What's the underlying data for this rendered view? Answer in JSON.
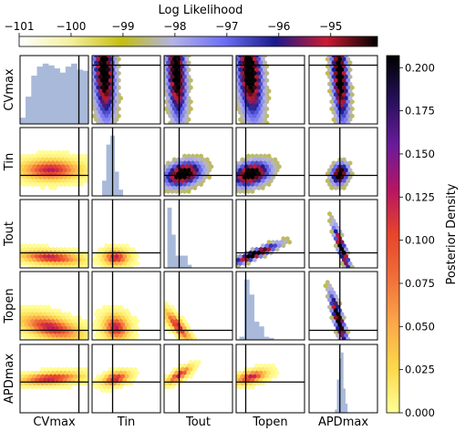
{
  "chart_data": {
    "type": "corner-plot",
    "parameters": [
      "CVmax",
      "Tin",
      "Tout",
      "Topen",
      "APDmax"
    ],
    "upper_triangle": "log likelihood (hexbin), colorbar top",
    "lower_triangle": "posterior density (hexbin), colorbar right",
    "diagonal": "marginal posterior histograms",
    "reference_lines": [
      {
        "parameter": "CVmax",
        "frac": 0.86
      },
      {
        "parameter": "Tin",
        "frac": 0.3
      },
      {
        "parameter": "Tout",
        "frac": 0.22
      },
      {
        "parameter": "Topen",
        "frac": 0.14
      },
      {
        "parameter": "APDmax",
        "frac": 0.45
      }
    ],
    "top_colorbar": {
      "label": "Log Likelihood",
      "range": [
        -101,
        -94.1
      ],
      "ticks": [
        -101,
        -100,
        -99,
        -98,
        -97,
        -96,
        -95
      ],
      "tick_labels": [
        "−101",
        "−100",
        "−99",
        "−98",
        "−97",
        "−96",
        "−95"
      ],
      "colormap": [
        "#ffffff",
        "#f4f0a0",
        "#c4bf10",
        "#b3b3e6",
        "#6e6ef5",
        "#1a1a8c",
        "#cc1a33",
        "#000000"
      ]
    },
    "right_colorbar": {
      "label": "Posterior Density",
      "range": [
        0,
        0.207
      ],
      "ticks": [
        0.0,
        0.025,
        0.05,
        0.075,
        0.1,
        0.125,
        0.15,
        0.175,
        0.2
      ],
      "tick_labels": [
        "0.000",
        "0.025",
        "0.050",
        "0.075",
        "0.100",
        "0.125",
        "0.150",
        "0.175",
        "0.200"
      ],
      "colormap": [
        "#ffff99",
        "#fdd84a",
        "#fca84a",
        "#f0703a",
        "#e8442a",
        "#b51563",
        "#6a1b9a",
        "#26105a",
        "#000000"
      ]
    },
    "diagonal_histograms": [
      {
        "parameter": "CVmax",
        "heights": [
          0.1,
          0.45,
          0.8,
          0.95,
          1.0,
          0.97,
          0.92,
          0.85,
          0.95,
          1.0,
          0.9,
          0.88
        ],
        "range": [
          0,
          1
        ]
      },
      {
        "parameter": "Tin",
        "heights": [
          0.25,
          0.85,
          1.0,
          0.4,
          0.1
        ],
        "range": [
          0.15,
          0.45
        ]
      },
      {
        "parameter": "Tout",
        "heights": [
          1.0,
          0.55,
          0.2,
          0.2,
          0.2,
          0.05
        ],
        "range": [
          0.05,
          0.4
        ]
      },
      {
        "parameter": "Topen",
        "heights": [
          0.05,
          1.0,
          0.75,
          0.3,
          0.22,
          0.05,
          0.03
        ],
        "range": [
          0.05,
          0.55
        ]
      },
      {
        "parameter": "APDmax",
        "heights": [
          0.05,
          0.55,
          0.9,
          1.0,
          0.4,
          0.15
        ],
        "range": [
          0.38,
          0.56
        ]
      }
    ]
  }
}
